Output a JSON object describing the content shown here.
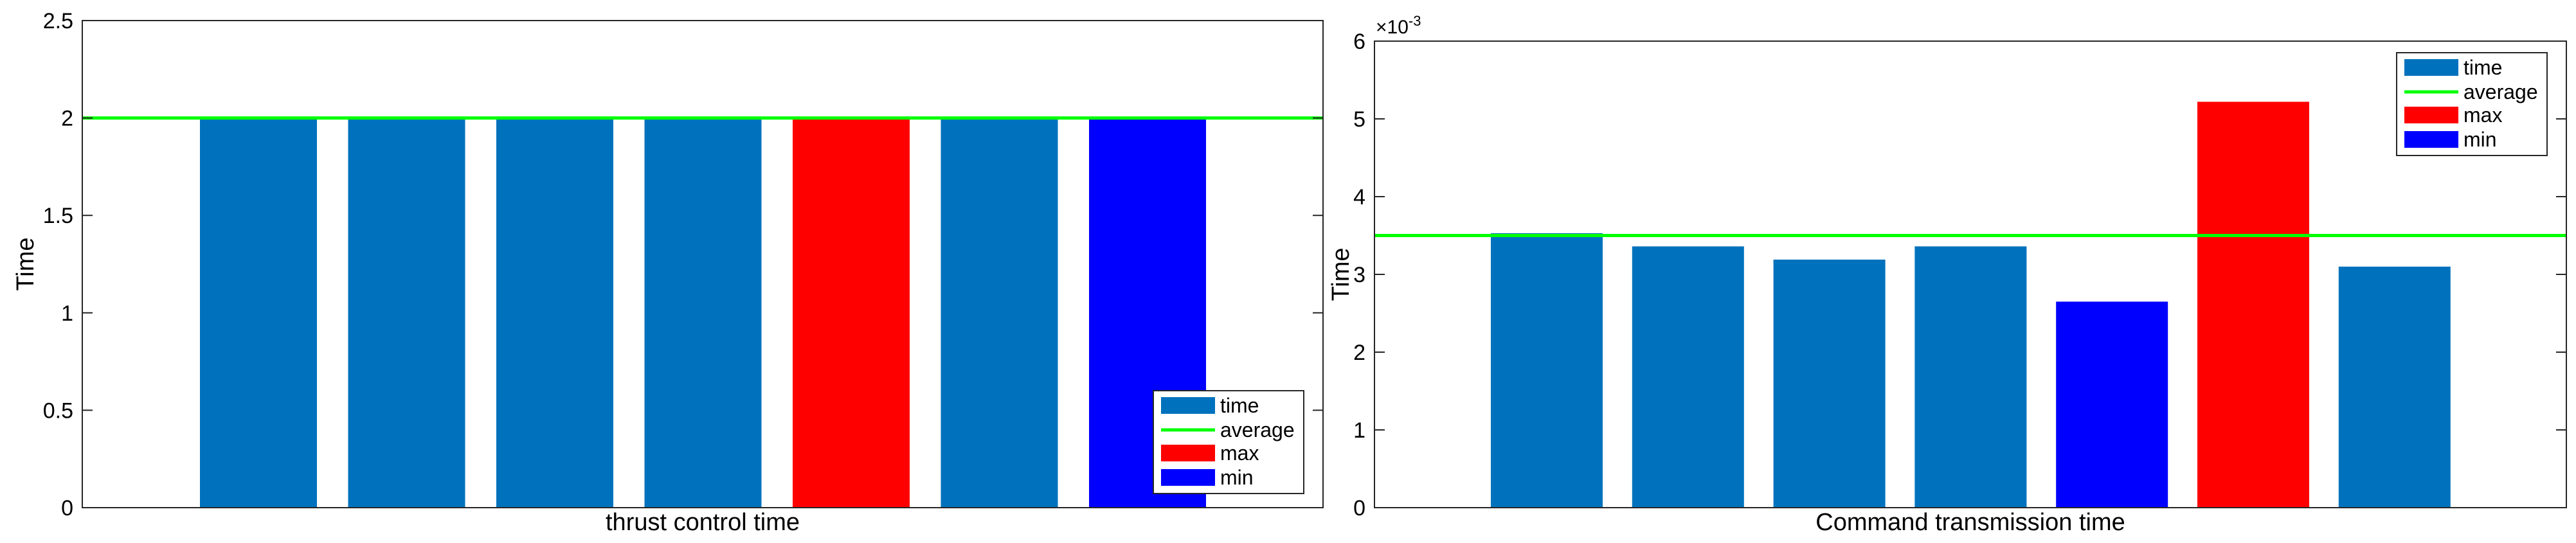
{
  "colors": {
    "time": "#0072BD",
    "average": "#00FF00",
    "max": "#FF0000",
    "min": "#0000FF",
    "axis": "#000000"
  },
  "legend_labels": [
    "time",
    "average",
    "max",
    "min"
  ],
  "chart_data": [
    {
      "type": "bar",
      "xlabel": "thrust  control time",
      "ylabel": "Time",
      "ylim": [
        0,
        2.5
      ],
      "yticks": [
        0,
        0.5,
        1,
        1.5,
        2,
        2.5
      ],
      "ytick_labels": [
        "0",
        "0.5",
        "1",
        "1.5",
        "2",
        "2.5"
      ],
      "exponent_label": "",
      "values": [
        2,
        2,
        2,
        2,
        2,
        2,
        2
      ],
      "bar_roles": [
        "time",
        "time",
        "time",
        "time",
        "max",
        "time",
        "min"
      ],
      "average": 2,
      "legend_position": "bottom-right",
      "grid": false
    },
    {
      "type": "bar",
      "xlabel": "Command transmission time",
      "ylabel": "Time",
      "ylim": [
        0,
        6
      ],
      "yticks": [
        0,
        1,
        2,
        3,
        4,
        5,
        6
      ],
      "ytick_labels": [
        "0",
        "1",
        "2",
        "3",
        "4",
        "5",
        "6"
      ],
      "exponent_label": "×10",
      "exponent_power": "-3",
      "values": [
        3.53,
        3.36,
        3.19,
        3.36,
        2.65,
        5.22,
        3.1
      ],
      "bar_roles": [
        "time",
        "time",
        "time",
        "time",
        "min",
        "max",
        "time"
      ],
      "average": 3.5,
      "legend_position": "top-right",
      "grid": false
    }
  ]
}
